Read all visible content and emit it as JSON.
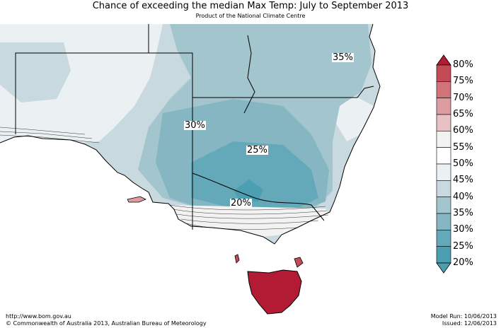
{
  "title": "Chance of exceeding the median Max Temp: July to September 2013",
  "subtitle": "Product of the National Climate Centre",
  "footer": {
    "url": "http://www.bom.gov.au",
    "copyright": "©  Commonwealth of Australia 2013, Australian Bureau of Meteorology",
    "model_run": "Model Run: 10/06/2013",
    "issued": "Issued: 12/06/2013"
  },
  "map_labels": [
    "35%",
    "30%",
    "25%",
    "20%"
  ],
  "legend": {
    "labels": [
      "80%",
      "75%",
      "70%",
      "65%",
      "60%",
      "55%",
      "50%",
      "45%",
      "40%",
      "35%",
      "30%",
      "25%",
      "20%"
    ],
    "colors": [
      "#b31b34",
      "#c44a55",
      "#d1747a",
      "#dc9ca0",
      "#e6c2c4",
      "#f2f2f2",
      "#ffffff",
      "#ebf0f2",
      "#c8dadf",
      "#a3c5cd",
      "#85b6c2",
      "#64a9ba",
      "#4b9fb1"
    ]
  },
  "colors": {
    "land_base": "#c8dadf",
    "tasmania": "#b31b34"
  }
}
